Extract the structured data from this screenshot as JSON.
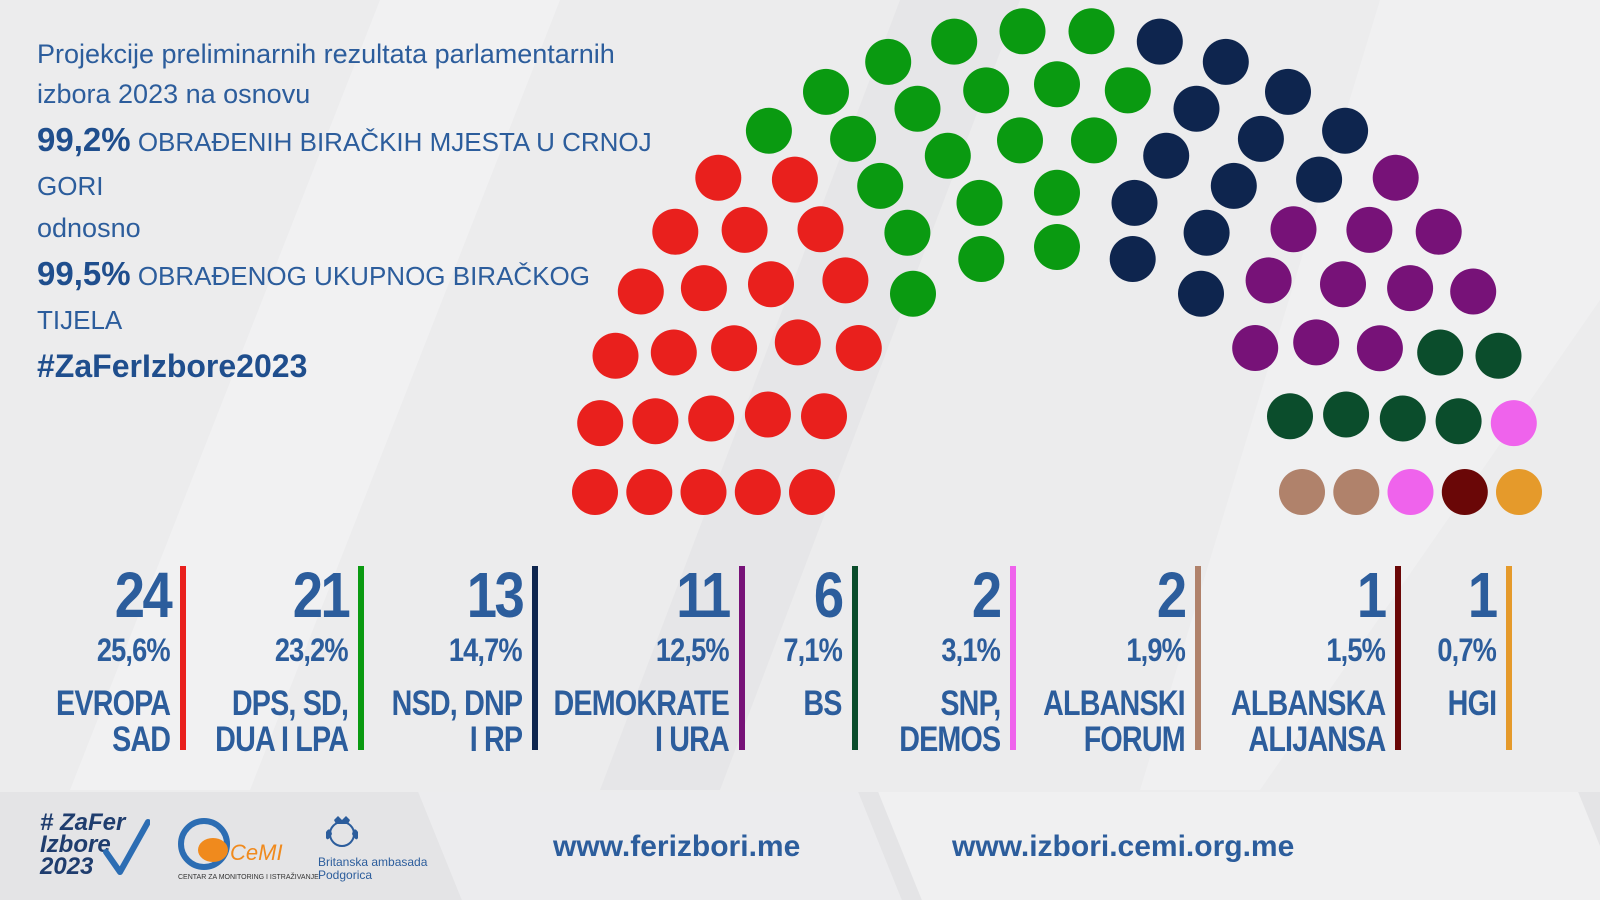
{
  "intro": {
    "line1": "Projekcije preliminarnih rezultata parlamentarnih",
    "line2": "izbora 2023 na osnovu",
    "pct1_value": "99,2%",
    "pct1_text": "OBRAĐENIH BIRAČKIH MJESTA U CRNOJ GORI",
    "connector": "odnosno",
    "pct2_value": "99,5%",
    "pct2_text": "OBRAĐENOG UKUPNOG BIRAČKOG TIJELA",
    "hashtag": "#ZaFerIzbore2023"
  },
  "chart_data": {
    "type": "parliament",
    "total_seats": 81,
    "parties": [
      {
        "name_line1": "EVROPA",
        "name_line2": "SAD",
        "seats": 24,
        "seats_label": "24",
        "share": 25.6,
        "share_label": "25,6%",
        "color": "#e9201d"
      },
      {
        "name_line1": "DPS, SD,",
        "name_line2": "DUA I LPA",
        "seats": 21,
        "seats_label": "21",
        "share": 23.2,
        "share_label": "23,2%",
        "color": "#0a9a11"
      },
      {
        "name_line1": "NSD, DNP",
        "name_line2": "I RP",
        "seats": 13,
        "seats_label": "13",
        "share": 14.7,
        "share_label": "14,7%",
        "color": "#0e254e"
      },
      {
        "name_line1": "DEMOKRATE",
        "name_line2": "I URA",
        "seats": 11,
        "seats_label": "11",
        "share": 12.5,
        "share_label": "12,5%",
        "color": "#771278"
      },
      {
        "name_line1": "BS",
        "name_line2": "",
        "seats": 6,
        "seats_label": "6",
        "share": 7.1,
        "share_label": "7,1%",
        "color": "#0b4d2c"
      },
      {
        "name_line1": "SNP,",
        "name_line2": "DEMOS",
        "seats": 2,
        "seats_label": "2",
        "share": 3.1,
        "share_label": "3,1%",
        "color": "#ef63ec"
      },
      {
        "name_line1": "ALBANSKI",
        "name_line2": "FORUM",
        "seats": 2,
        "seats_label": "2",
        "share": 1.9,
        "share_label": "1,9%",
        "color": "#b0826b"
      },
      {
        "name_line1": "ALBANSKA",
        "name_line2": "ALIJANSA",
        "seats": 1,
        "seats_label": "1",
        "share": 1.5,
        "share_label": "1,5%",
        "color": "#6a0707"
      },
      {
        "name_line1": "HGI",
        "name_line2": "",
        "seats": 1,
        "seats_label": "1",
        "share": 0.7,
        "share_label": "0,7%",
        "color": "#e59a2b"
      }
    ]
  },
  "footer": {
    "url1": "www.ferizbori.me",
    "url2": "www.izbori.cemi.org.me",
    "logo_zafer_line1": "# ZaFer",
    "logo_zafer_line2": "Izbore",
    "logo_zafer_line3": "2023",
    "logo_cemi_word": "CeMI",
    "logo_cemi_sub": "CENTAR ZA MONITORING I ISTRAŽIVANJE",
    "logo_brit_line1": "Britanska ambasada",
    "logo_brit_line2": "Podgorica"
  }
}
